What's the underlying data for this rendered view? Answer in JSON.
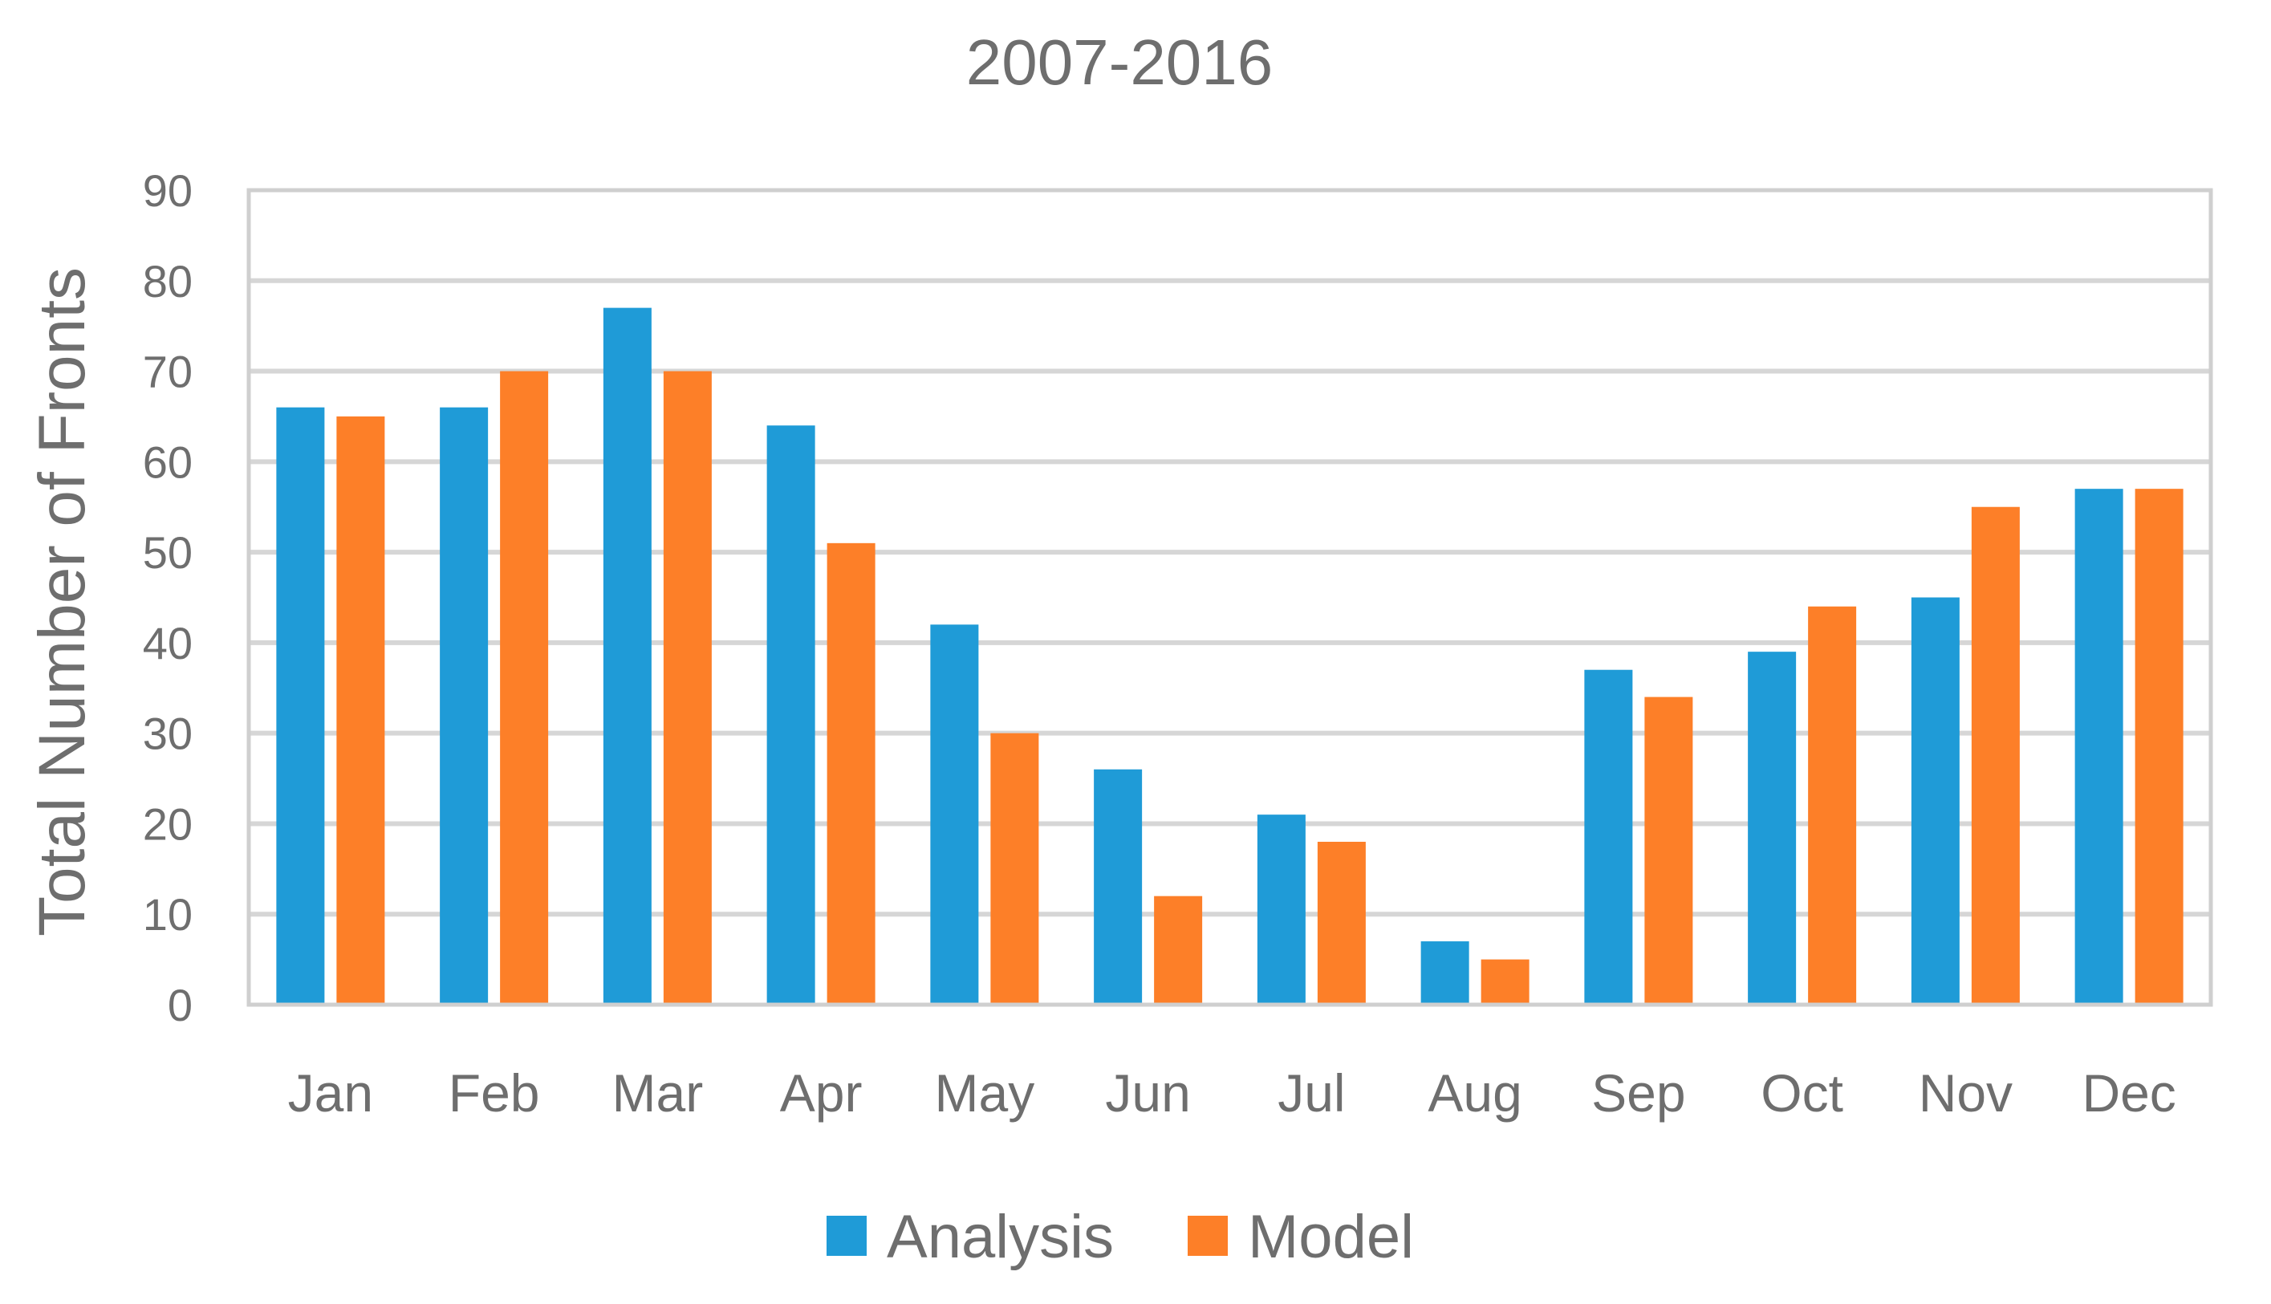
{
  "chart_data": {
    "type": "bar",
    "title": "2007-2016",
    "xlabel": "",
    "ylabel": "Total Number of Fronts",
    "ylim": [
      0,
      90
    ],
    "yticks": [
      "0",
      "10",
      "20",
      "30",
      "40",
      "50",
      "60",
      "70",
      "80",
      "90"
    ],
    "categories": [
      "Jan",
      "Feb",
      "Mar",
      "Apr",
      "May",
      "Jun",
      "Jul",
      "Aug",
      "Sep",
      "Oct",
      "Nov",
      "Dec"
    ],
    "series": [
      {
        "name": "Analysis",
        "color": "#1f9bd7",
        "values": [
          66,
          66,
          77,
          64,
          42,
          26,
          21,
          7,
          37,
          39,
          45,
          57
        ]
      },
      {
        "name": "Model",
        "color": "#fd7f28",
        "values": [
          65,
          70,
          70,
          51,
          30,
          12,
          18,
          5,
          34,
          44,
          55,
          57
        ]
      }
    ],
    "grid": true,
    "legend": "bottom-center"
  }
}
